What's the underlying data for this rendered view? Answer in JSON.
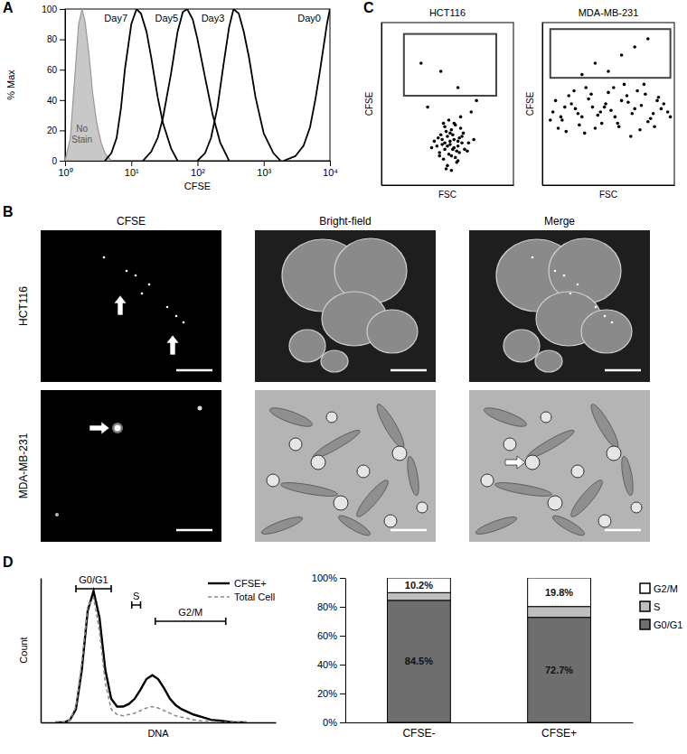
{
  "chart_data": [
    {
      "type": "line",
      "panel": "A",
      "xlabel": "CFSE",
      "ylabel": "% Max",
      "log": "x",
      "xlim": [
        1,
        10000
      ],
      "ylim": [
        0,
        100
      ],
      "xticks": [
        {
          "value": 1,
          "label": "10⁰"
        },
        {
          "value": 10,
          "label": "10¹"
        },
        {
          "value": 100,
          "label": "10²"
        },
        {
          "value": 1000,
          "label": "10³"
        },
        {
          "value": 10000,
          "label": "10⁴"
        }
      ],
      "yticks": [
        0,
        20,
        40,
        60,
        80,
        100
      ],
      "series": [
        {
          "name": "No Stain",
          "type": "area",
          "color": "#c8c8c8",
          "x": [
            1,
            1.2,
            1.4,
            1.6,
            1.8,
            2,
            2.3,
            2.6,
            3,
            3.5,
            4,
            5
          ],
          "values": [
            0,
            15,
            55,
            90,
            100,
            92,
            70,
            45,
            25,
            12,
            5,
            0
          ]
        },
        {
          "name": "Day7",
          "type": "line",
          "color": "#000000",
          "x": [
            4,
            5,
            6,
            7,
            8,
            10,
            12,
            14,
            17,
            20,
            25,
            30,
            40,
            50
          ],
          "values": [
            0,
            5,
            15,
            35,
            60,
            90,
            100,
            97,
            85,
            68,
            42,
            25,
            8,
            0
          ]
        },
        {
          "name": "Day5",
          "type": "line",
          "color": "#000000",
          "x": [
            15,
            20,
            25,
            30,
            40,
            50,
            60,
            70,
            85,
            100,
            130,
            170,
            220,
            300
          ],
          "values": [
            0,
            6,
            15,
            28,
            58,
            85,
            98,
            100,
            93,
            80,
            55,
            30,
            12,
            0
          ]
        },
        {
          "name": "Day3",
          "type": "line",
          "color": "#000000",
          "x": [
            100,
            130,
            160,
            200,
            250,
            300,
            350,
            420,
            500,
            600,
            750,
            1000,
            1400,
            1800
          ],
          "values": [
            0,
            5,
            15,
            35,
            65,
            88,
            100,
            97,
            85,
            68,
            42,
            18,
            5,
            0
          ]
        },
        {
          "name": "Day0",
          "type": "line",
          "color": "#000000",
          "x": [
            2000,
            3000,
            4000,
            5000,
            6000,
            7000,
            8000,
            9000,
            10000
          ],
          "values": [
            0,
            3,
            10,
            22,
            40,
            58,
            75,
            90,
            100
          ]
        }
      ]
    },
    {
      "type": "image_grid",
      "panel": "B",
      "columns": [
        "CFSE",
        "Bright-field",
        "Merge"
      ],
      "rows": [
        "HCT116",
        "MDA-MB-231"
      ]
    },
    {
      "type": "scatter",
      "panel": "C",
      "title": "HCT116",
      "xlabel": "FSC",
      "ylabel": "CFSE",
      "tick_labels": false,
      "xlim": [
        0,
        100
      ],
      "ylim": [
        0,
        100
      ],
      "color": "#000000",
      "x": [
        44,
        48,
        52,
        55,
        58,
        50,
        46,
        53,
        57,
        61,
        42,
        49,
        54,
        59,
        63,
        47,
        51,
        56,
        60,
        45,
        52,
        58,
        40,
        66,
        50,
        55,
        48,
        62,
        53,
        57,
        44,
        51,
        59,
        46,
        54,
        49,
        61,
        56,
        43,
        65,
        52,
        47,
        58,
        50,
        55,
        38,
        70,
        60,
        53,
        48,
        35,
        72,
        58,
        45,
        68,
        30
      ],
      "values": [
        20,
        22,
        25,
        23,
        27,
        30,
        28,
        18,
        21,
        26,
        24,
        33,
        31,
        29,
        22,
        16,
        19,
        17,
        35,
        31,
        27,
        24,
        27,
        26,
        12,
        38,
        36,
        32,
        34,
        14,
        18,
        40,
        20,
        25,
        22,
        10,
        30,
        37,
        29,
        21,
        32,
        38,
        15,
        24,
        28,
        23,
        28,
        42,
        9,
        26,
        48,
        52,
        60,
        70,
        45,
        75
      ],
      "gate": {
        "x": [
          17,
          87
        ],
        "y": [
          55,
          93
        ]
      }
    },
    {
      "type": "scatter",
      "title": "MDA-MB-231",
      "xlabel": "FSC",
      "ylabel": "CFSE",
      "tick_labels": false,
      "xlim": [
        0,
        100
      ],
      "ylim": [
        0,
        100
      ],
      "color": "#000000",
      "x": [
        8,
        15,
        22,
        30,
        38,
        45,
        52,
        60,
        68,
        75,
        82,
        90,
        12,
        20,
        28,
        35,
        42,
        50,
        58,
        65,
        72,
        80,
        88,
        95,
        10,
        18,
        25,
        33,
        40,
        48,
        55,
        62,
        70,
        78,
        85,
        92,
        14,
        24,
        32,
        44,
        54,
        64,
        74,
        84,
        6,
        27,
        47,
        67,
        87,
        37,
        57,
        77,
        17,
        97,
        50,
        60,
        40,
        70,
        30,
        80
      ],
      "values": [
        45,
        40,
        50,
        42,
        48,
        38,
        46,
        52,
        44,
        49,
        41,
        47,
        35,
        55,
        37,
        53,
        43,
        57,
        36,
        51,
        58,
        39,
        54,
        45,
        52,
        33,
        47,
        60,
        35,
        50,
        42,
        62,
        47,
        56,
        36,
        50,
        42,
        58,
        32,
        45,
        60,
        55,
        34,
        44,
        40,
        44,
        48,
        30,
        52,
        56,
        38,
        62,
        48,
        42,
        70,
        80,
        75,
        85,
        68,
        90
      ],
      "gate": {
        "x": [
          6,
          97
        ],
        "y": [
          66,
          96
        ]
      }
    },
    {
      "type": "line",
      "panel": "D",
      "xlabel": "DNA",
      "ylabel": "Count",
      "tick_labels": false,
      "legend": "upper right",
      "xlim": [
        0,
        80
      ],
      "ylim": [
        0,
        110
      ],
      "x": [
        5,
        8,
        10,
        12,
        14,
        16,
        18,
        20,
        22,
        24,
        26,
        28,
        30,
        32,
        34,
        36,
        38,
        40,
        42,
        44,
        46,
        48,
        50,
        52,
        55,
        58,
        62,
        66,
        70
      ],
      "series": [
        {
          "name": "CFSE+",
          "color": "#000000",
          "line_style": "solid",
          "values": [
            0,
            0,
            2,
            10,
            40,
            85,
            100,
            80,
            40,
            18,
            12,
            12,
            14,
            18,
            25,
            33,
            36,
            33,
            26,
            18,
            13,
            10,
            8,
            6,
            4,
            2,
            1,
            0,
            0
          ]
        },
        {
          "name": "Total Cell",
          "color": "#8c8c8c",
          "line_style": "dashed",
          "values": [
            0,
            0,
            2,
            12,
            45,
            88,
            95,
            70,
            30,
            10,
            6,
            5,
            6,
            7,
            9,
            11,
            12,
            11,
            9,
            7,
            5,
            4,
            3,
            2,
            1,
            1,
            0,
            0,
            0
          ]
        }
      ],
      "ranges": [
        {
          "label": "G0/G1",
          "x": [
            12,
            24
          ]
        },
        {
          "label": "S",
          "x": [
            31,
            34
          ]
        },
        {
          "label": "G2/M",
          "x": [
            39,
            63
          ]
        }
      ]
    },
    {
      "type": "bar",
      "stacked": true,
      "legend": "right",
      "categories": [
        "CFSE-",
        "CFSE+"
      ],
      "ylim": [
        0,
        100
      ],
      "yticks": [
        {
          "value": 0,
          "label": "0%"
        },
        {
          "value": 20,
          "label": "20%"
        },
        {
          "value": 40,
          "label": "40%"
        },
        {
          "value": 60,
          "label": "60%"
        },
        {
          "value": 80,
          "label": "80%"
        },
        {
          "value": 100,
          "label": "100%"
        }
      ],
      "series": [
        {
          "name": "G0/G1",
          "color": "#6e6e6e",
          "values": [
            84.5,
            72.7
          ],
          "data_labels": true,
          "value_labels": [
            "84.5%",
            "72.7%"
          ]
        },
        {
          "name": "S",
          "color": "#bfbfbf",
          "values": [
            5.3,
            7.5
          ],
          "data_labels": false
        },
        {
          "name": "G2/M",
          "color": "#ffffff",
          "values": [
            10.2,
            19.8
          ],
          "data_labels": true,
          "value_labels": [
            "10.2%",
            "19.8%"
          ]
        }
      ]
    }
  ]
}
